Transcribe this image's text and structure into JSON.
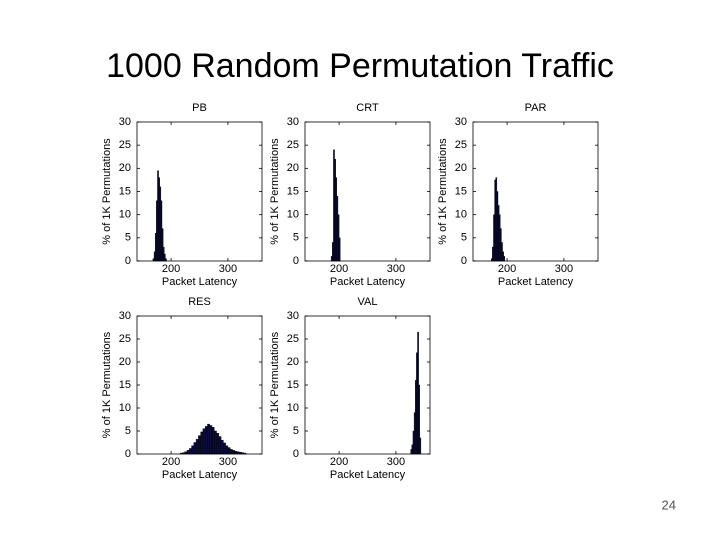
{
  "title": "1000 Random Permutation Traffic",
  "page_number": "24",
  "chart_data": [
    {
      "type": "histogram",
      "title": "PB",
      "xlabel": "Packet Latency",
      "ylabel": "% of 1K Permutations",
      "color": "#0b0b3b",
      "bins": [
        168,
        170,
        172,
        174,
        176,
        178,
        180,
        182,
        184,
        186,
        188,
        190,
        192
      ],
      "values": [
        0.5,
        2,
        6,
        13,
        19.5,
        18,
        16,
        13,
        7,
        3,
        1.5,
        0.5
      ],
      "xlim": [
        140,
        360
      ],
      "ylim": [
        0,
        30
      ],
      "xticks": [
        200,
        300
      ],
      "yticks": [
        0,
        5,
        10,
        15,
        20,
        25,
        30
      ]
    },
    {
      "type": "histogram",
      "title": "CRT",
      "xlabel": "Packet Latency",
      "ylabel": "% of 1K Permutations",
      "color": "#0b0b3b",
      "bins": [
        186,
        188,
        190,
        192,
        194,
        196,
        198,
        200,
        202
      ],
      "values": [
        1,
        4,
        24,
        22,
        18,
        14,
        10,
        5,
        2
      ],
      "xlim": [
        140,
        360
      ],
      "ylim": [
        0,
        30
      ],
      "xticks": [
        200,
        300
      ],
      "yticks": [
        0,
        5,
        10,
        15,
        20,
        25,
        30
      ]
    },
    {
      "type": "histogram",
      "title": "PAR",
      "xlabel": "Packet Latency",
      "ylabel": "% of 1K Permutations",
      "color": "#0b0b3b",
      "bins": [
        172,
        174,
        176,
        178,
        180,
        182,
        184,
        186,
        188,
        190,
        192,
        194,
        196
      ],
      "values": [
        0.5,
        3,
        10,
        17.5,
        18,
        15,
        12,
        10,
        7,
        4,
        2,
        1
      ],
      "xlim": [
        140,
        360
      ],
      "ylim": [
        0,
        30
      ],
      "xticks": [
        200,
        300
      ],
      "yticks": [
        0,
        5,
        10,
        15,
        20,
        25,
        30
      ]
    },
    {
      "type": "histogram",
      "title": "RES",
      "xlabel": "Packet Latency",
      "ylabel": "% of 1K Permutations",
      "color": "#0b0b3b",
      "bins": [
        216,
        220,
        224,
        228,
        232,
        236,
        240,
        244,
        248,
        252,
        256,
        260,
        264,
        268,
        272,
        276,
        280,
        284,
        288,
        292,
        296,
        300,
        304,
        308,
        312,
        316,
        320,
        324,
        328,
        332
      ],
      "values": [
        0.2,
        0.3,
        0.5,
        0.8,
        1.2,
        1.8,
        2.5,
        3.2,
        4,
        4.8,
        5.5,
        6,
        6.5,
        6.2,
        5.8,
        5,
        4.5,
        3.8,
        3,
        2.4,
        1.8,
        1.4,
        1,
        0.8,
        0.6,
        0.5,
        0.4,
        0.3,
        0.2
      ],
      "xlim": [
        140,
        360
      ],
      "ylim": [
        0,
        30
      ],
      "xticks": [
        200,
        300
      ],
      "yticks": [
        0,
        5,
        10,
        15,
        20,
        25,
        30
      ]
    },
    {
      "type": "histogram",
      "title": "VAL",
      "xlabel": "Packet Latency",
      "ylabel": "% of 1K Permutations",
      "color": "#0b0b3b",
      "bins": [
        326,
        328,
        330,
        332,
        334,
        336,
        338,
        340,
        342,
        344
      ],
      "values": [
        1,
        2,
        5,
        9,
        16,
        22,
        26.5,
        15,
        3.5
      ],
      "xlim": [
        140,
        360
      ],
      "ylim": [
        0,
        30
      ],
      "xticks": [
        200,
        300
      ],
      "yticks": [
        0,
        5,
        10,
        15,
        20,
        25,
        30
      ]
    }
  ]
}
